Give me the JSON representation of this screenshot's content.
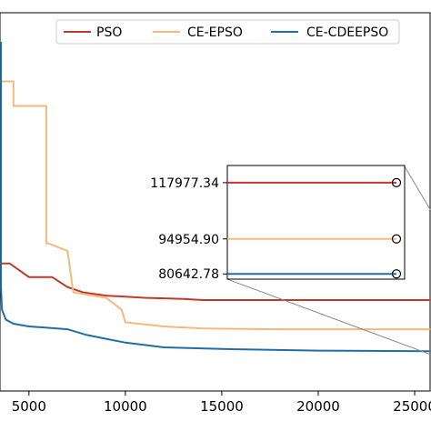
{
  "chart_data": {
    "type": "line",
    "title": "",
    "xlabel": "",
    "ylabel": "",
    "xlim": [
      3500,
      25800
    ],
    "ylim": [
      60000,
      1000000
    ],
    "x_ticks": [
      "5000",
      "10000",
      "15000",
      "20000",
      "25000"
    ],
    "grid": false,
    "legend_position": "top-right",
    "series": [
      {
        "name": "PSO",
        "color": "#c0392b",
        "x": [
          3500,
          4000,
          5000,
          6200,
          7000,
          7800,
          9000,
          11000,
          13000,
          14000,
          18000,
          22000,
          25800
        ],
        "y": [
          155000,
          155000,
          140000,
          140000,
          130000,
          125000,
          122000,
          120000,
          119000,
          118000,
          118000,
          117977.34,
          117977.34
        ]
      },
      {
        "name": "CE-EPSO",
        "color": "#f5b97a",
        "x": [
          3500,
          4200,
          4200,
          5900,
          5900,
          6000,
          7000,
          7300,
          9000,
          9800,
          10000,
          12000,
          14000,
          18000,
          25800
        ],
        "y": [
          600000,
          600000,
          500000,
          500000,
          180000,
          180000,
          170000,
          125000,
          120000,
          110000,
          100000,
          97000,
          95500,
          95000,
          94954.9
        ]
      },
      {
        "name": "CE-CDEEPSO",
        "color": "#1f6fa6",
        "x": [
          3500,
          3550,
          3550,
          3600,
          3800,
          4200,
          5000,
          6000,
          7000,
          8000,
          10000,
          12000,
          15000,
          20000,
          25800
        ],
        "y": [
          800000,
          800000,
          130000,
          110000,
          102000,
          99000,
          97000,
          96000,
          95000,
          91000,
          86000,
          83000,
          82000,
          81000,
          80642.78
        ]
      }
    ],
    "inset": {
      "labels": [
        "117977.34",
        "94954.90",
        "80642.78"
      ],
      "values": [
        117977.34,
        94954.9,
        80642.78
      ],
      "colors": [
        "#c0392b",
        "#f5b97a",
        "#1f6fa6"
      ]
    }
  }
}
